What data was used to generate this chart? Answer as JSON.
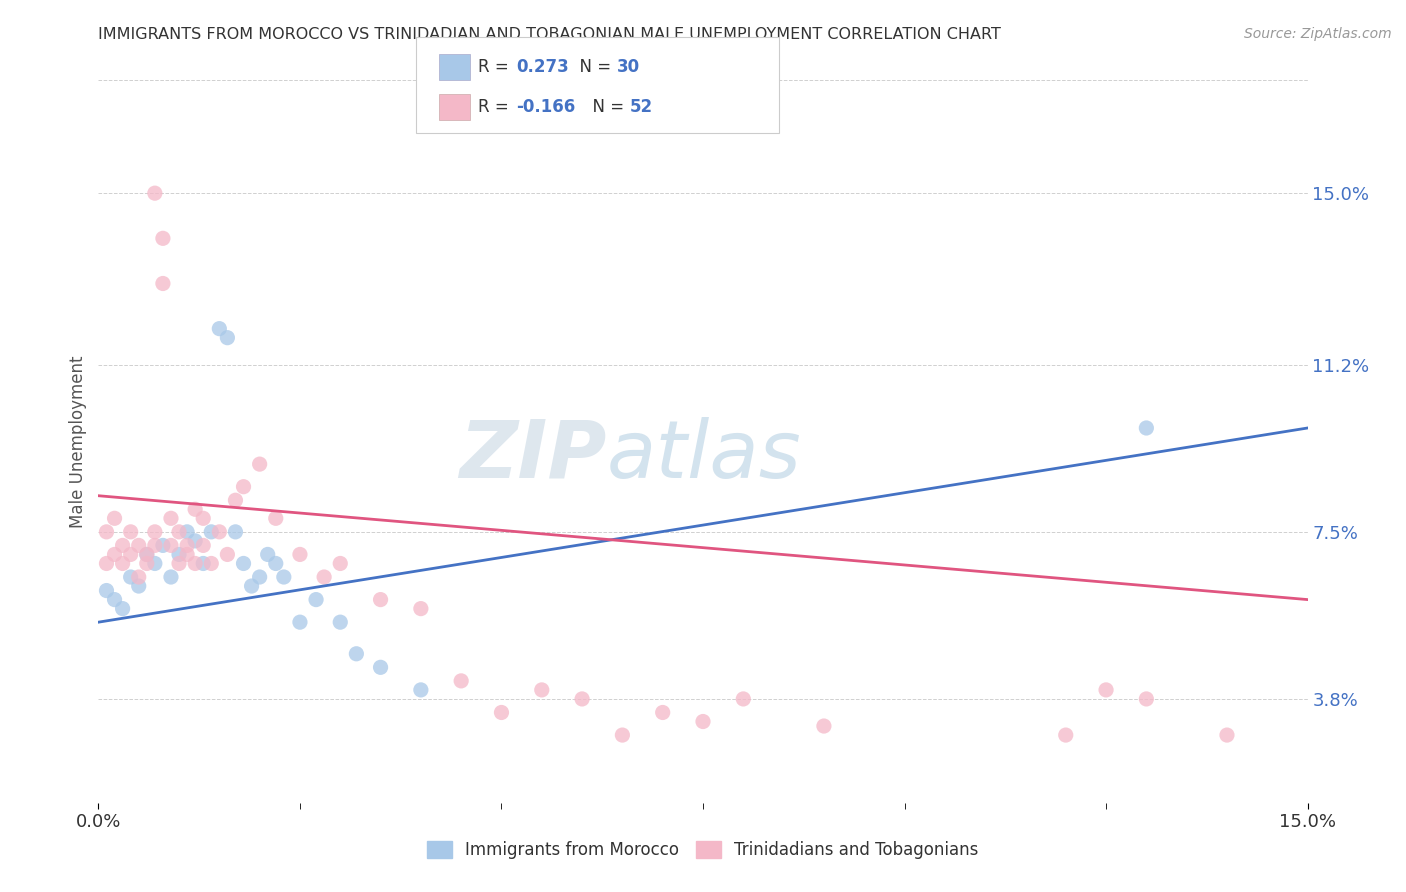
{
  "title": "IMMIGRANTS FROM MOROCCO VS TRINIDADIAN AND TOBAGONIAN MALE UNEMPLOYMENT CORRELATION CHART",
  "source": "Source: ZipAtlas.com",
  "ylabel": "Male Unemployment",
  "y_ticks": [
    0.038,
    0.075,
    0.112,
    0.15
  ],
  "y_tick_labels": [
    "3.8%",
    "7.5%",
    "11.2%",
    "15.0%"
  ],
  "xlim": [
    0.0,
    0.15
  ],
  "ylim": [
    0.015,
    0.175
  ],
  "blue_color": "#a8c8e8",
  "pink_color": "#f4b8c8",
  "trend_blue": "#4472c4",
  "trend_pink": "#e05580",
  "label_blue": "Immigrants from Morocco",
  "label_pink": "Trinidadians and Tobagonians",
  "watermark_zip": "ZIP",
  "watermark_atlas": "atlas",
  "blue_scatter_x": [
    0.001,
    0.002,
    0.003,
    0.004,
    0.005,
    0.006,
    0.007,
    0.008,
    0.009,
    0.01,
    0.011,
    0.012,
    0.013,
    0.014,
    0.015,
    0.016,
    0.017,
    0.018,
    0.019,
    0.02,
    0.021,
    0.022,
    0.023,
    0.025,
    0.027,
    0.03,
    0.032,
    0.035,
    0.04,
    0.13
  ],
  "blue_scatter_y": [
    0.062,
    0.06,
    0.058,
    0.065,
    0.063,
    0.07,
    0.068,
    0.072,
    0.065,
    0.07,
    0.075,
    0.073,
    0.068,
    0.075,
    0.12,
    0.118,
    0.075,
    0.068,
    0.063,
    0.065,
    0.07,
    0.068,
    0.065,
    0.055,
    0.06,
    0.055,
    0.048,
    0.045,
    0.04,
    0.098
  ],
  "pink_scatter_x": [
    0.001,
    0.001,
    0.002,
    0.002,
    0.003,
    0.003,
    0.004,
    0.004,
    0.005,
    0.005,
    0.006,
    0.006,
    0.007,
    0.007,
    0.007,
    0.008,
    0.008,
    0.009,
    0.009,
    0.01,
    0.01,
    0.011,
    0.011,
    0.012,
    0.012,
    0.013,
    0.013,
    0.014,
    0.015,
    0.016,
    0.017,
    0.018,
    0.02,
    0.022,
    0.025,
    0.028,
    0.03,
    0.035,
    0.04,
    0.045,
    0.05,
    0.055,
    0.06,
    0.065,
    0.07,
    0.075,
    0.08,
    0.09,
    0.12,
    0.125,
    0.13,
    0.14
  ],
  "pink_scatter_y": [
    0.068,
    0.075,
    0.07,
    0.078,
    0.068,
    0.072,
    0.07,
    0.075,
    0.065,
    0.072,
    0.068,
    0.07,
    0.072,
    0.075,
    0.15,
    0.13,
    0.14,
    0.078,
    0.072,
    0.068,
    0.075,
    0.07,
    0.072,
    0.068,
    0.08,
    0.072,
    0.078,
    0.068,
    0.075,
    0.07,
    0.082,
    0.085,
    0.09,
    0.078,
    0.07,
    0.065,
    0.068,
    0.06,
    0.058,
    0.042,
    0.035,
    0.04,
    0.038,
    0.03,
    0.035,
    0.033,
    0.038,
    0.032,
    0.03,
    0.04,
    0.038,
    0.03
  ],
  "blue_trend_start_y": 0.055,
  "blue_trend_end_y": 0.098,
  "pink_trend_start_y": 0.083,
  "pink_trend_end_y": 0.06
}
